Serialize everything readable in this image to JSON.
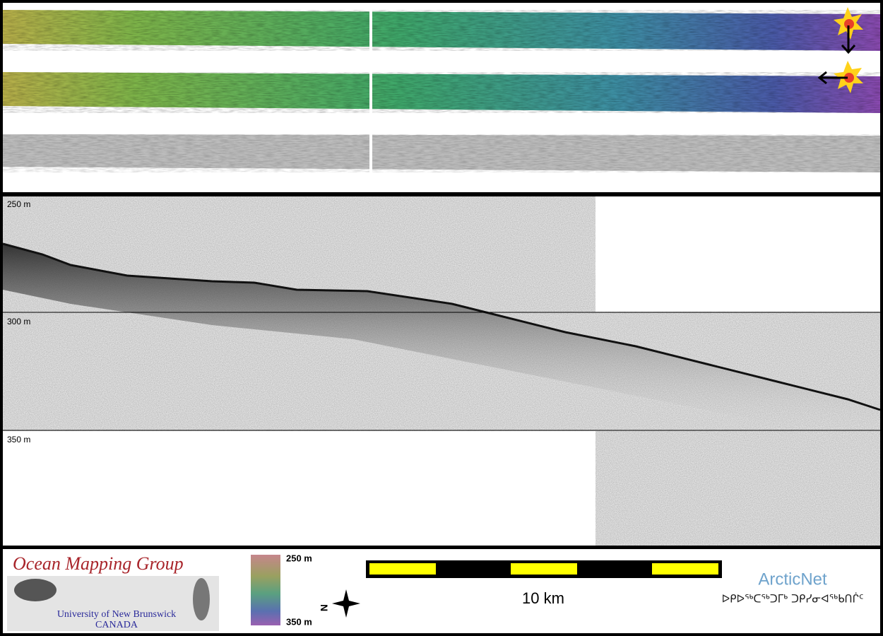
{
  "depth_labels": [
    "250 m",
    "300 m",
    "350 m"
  ],
  "logo": {
    "title": "Ocean Mapping Group",
    "university": "University of New Brunswick",
    "country": "CANADA"
  },
  "color_bar": {
    "top": "250 m",
    "bottom": "350 m"
  },
  "compass": {
    "label": "N"
  },
  "scale_bar": {
    "label": "10 km"
  },
  "partner": {
    "name": "ArcticNet",
    "syllabics": "ᐅᑭᐅᖅᑕᖅᑐᒥᒃ ᑐᑭᓯᓂᐊᖅᑲᑎᒌᑦ"
  }
}
